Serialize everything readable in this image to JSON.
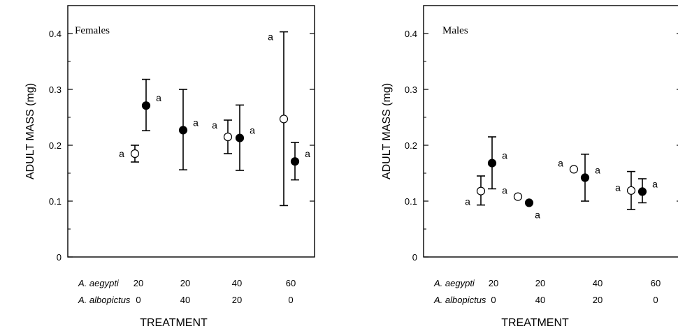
{
  "chart_data": [
    {
      "type": "scatter",
      "title": "Females",
      "ylabel": "ADULT MASS (mg)",
      "xlabel": "TREATMENT",
      "ylim": [
        0,
        0.45
      ],
      "yticks": [
        "0",
        "0.1",
        "0.2",
        "0.3",
        "0.4"
      ],
      "treatment_rows": [
        {
          "name": "A. aegypti",
          "values": [
            "20",
            "20",
            "40",
            "60"
          ]
        },
        {
          "name": "A. albopictus",
          "values": [
            "0",
            "40",
            "20",
            "0"
          ]
        }
      ],
      "series": [
        {
          "marker": "open-circle",
          "points": [
            {
              "group": 1,
              "mean": 0.185,
              "low": 0.17,
              "high": 0.2,
              "letter": "a",
              "letter_side": "left"
            },
            {
              "group": 3,
              "mean": 0.215,
              "low": 0.185,
              "high": 0.245,
              "letter": "a",
              "letter_side": "left"
            },
            {
              "group": 4,
              "mean": 0.247,
              "low": 0.092,
              "high": 0.403,
              "letter": "a",
              "letter_side": "left"
            }
          ]
        },
        {
          "marker": "filled-circle",
          "points": [
            {
              "group": 1,
              "mean": 0.271,
              "low": 0.226,
              "high": 0.318,
              "letter": "a",
              "letter_side": "right"
            },
            {
              "group": 2,
              "mean": 0.227,
              "low": 0.156,
              "high": 0.3,
              "letter": "a",
              "letter_side": "right"
            },
            {
              "group": 3,
              "mean": 0.213,
              "low": 0.155,
              "high": 0.272,
              "letter": "a",
              "letter_side": "right"
            },
            {
              "group": 4,
              "mean": 0.171,
              "low": 0.138,
              "high": 0.205,
              "letter": "a",
              "letter_side": "right"
            }
          ]
        }
      ]
    },
    {
      "type": "scatter",
      "title": "Males",
      "ylabel": "ADULT MASS (mg)",
      "xlabel": "TREATMENT",
      "ylim": [
        0,
        0.45
      ],
      "yticks": [
        "0",
        "0.1",
        "0.2",
        "0.3",
        "0.4"
      ],
      "treatment_rows": [
        {
          "name": "A. aegypti",
          "values": [
            "20",
            "20",
            "40",
            "60"
          ]
        },
        {
          "name": "A. albopictus",
          "values": [
            "0",
            "40",
            "20",
            "0"
          ]
        }
      ],
      "series": [
        {
          "marker": "open-circle",
          "points": [
            {
              "group": 1,
              "mean": 0.118,
              "low": 0.093,
              "high": 0.145,
              "letter": "a",
              "letter_side": "left"
            },
            {
              "group": 2,
              "mean": 0.108,
              "low": null,
              "high": null,
              "letter": "a",
              "letter_side": "left"
            },
            {
              "group": 3,
              "mean": 0.157,
              "low": null,
              "high": null,
              "letter": "a",
              "letter_side": "left"
            },
            {
              "group": 4,
              "mean": 0.119,
              "low": 0.085,
              "high": 0.153,
              "letter": "a",
              "letter_side": "left"
            }
          ]
        },
        {
          "marker": "filled-circle",
          "points": [
            {
              "group": 1,
              "mean": 0.168,
              "low": 0.122,
              "high": 0.215,
              "letter": "a",
              "letter_side": "right"
            },
            {
              "group": 2,
              "mean": 0.097,
              "low": null,
              "high": null,
              "letter": "a",
              "letter_side": "right-low"
            },
            {
              "group": 3,
              "mean": 0.142,
              "low": 0.1,
              "high": 0.184,
              "letter": "a",
              "letter_side": "right"
            },
            {
              "group": 4,
              "mean": 0.117,
              "low": 0.097,
              "high": 0.14,
              "letter": "a",
              "letter_side": "right"
            }
          ]
        }
      ]
    }
  ]
}
